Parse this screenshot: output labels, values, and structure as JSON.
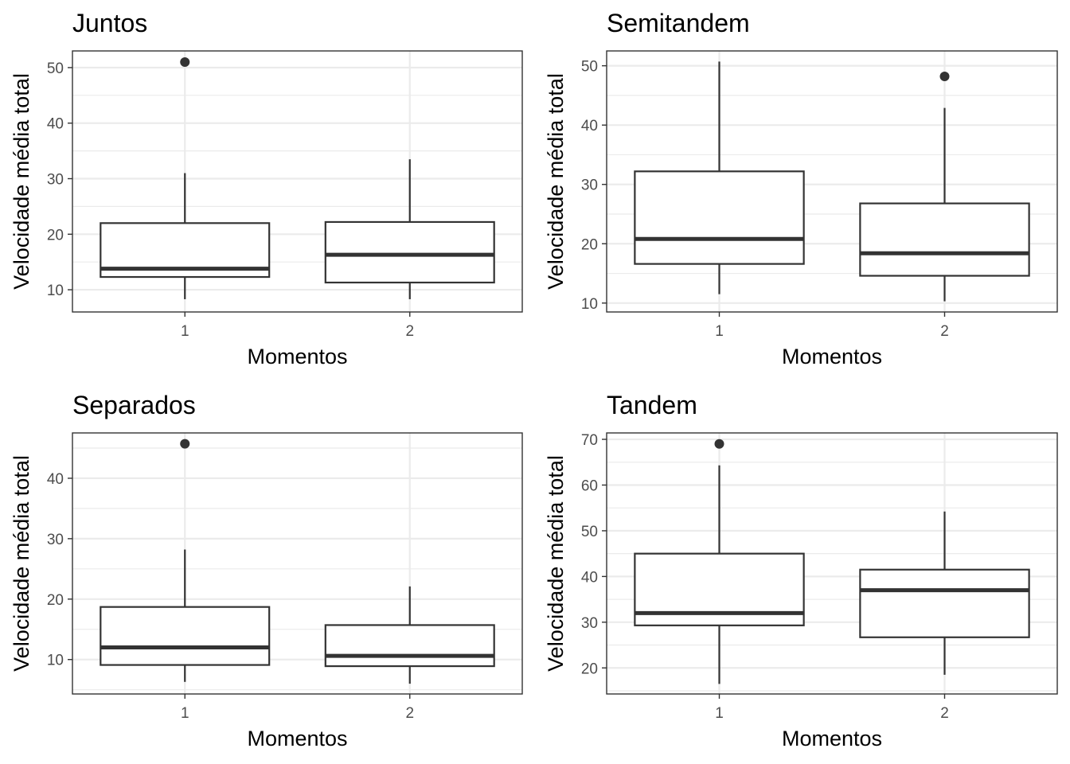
{
  "chart_data": [
    {
      "type": "boxplot",
      "title": "Juntos",
      "xlabel": "Momentos",
      "ylabel": "Velocidade média total",
      "categories": [
        "1",
        "2"
      ],
      "ylim": [
        6,
        53
      ],
      "yticks": [
        10,
        20,
        30,
        40,
        50
      ],
      "grid": true,
      "boxes": [
        {
          "category": "1",
          "whisker_low": 8.3,
          "q1": 12.3,
          "median": 13.8,
          "q3": 22.0,
          "whisker_high": 31.0,
          "outliers": [
            51.0
          ]
        },
        {
          "category": "2",
          "whisker_low": 8.3,
          "q1": 11.3,
          "median": 16.3,
          "q3": 22.2,
          "whisker_high": 33.5,
          "outliers": []
        }
      ]
    },
    {
      "type": "boxplot",
      "title": "Semitandem",
      "xlabel": "Momentos",
      "ylabel": "Velocidade média total",
      "categories": [
        "1",
        "2"
      ],
      "ylim": [
        8.5,
        52.5
      ],
      "yticks": [
        10,
        20,
        30,
        40,
        50
      ],
      "grid": true,
      "boxes": [
        {
          "category": "1",
          "whisker_low": 11.5,
          "q1": 16.6,
          "median": 20.8,
          "q3": 32.2,
          "whisker_high": 50.7,
          "outliers": []
        },
        {
          "category": "2",
          "whisker_low": 10.3,
          "q1": 14.6,
          "median": 18.4,
          "q3": 26.8,
          "whisker_high": 42.9,
          "outliers": [
            48.2
          ]
        }
      ]
    },
    {
      "type": "boxplot",
      "title": "Separados",
      "xlabel": "Momentos",
      "ylabel": "Velocidade média total",
      "categories": [
        "1",
        "2"
      ],
      "ylim": [
        4.3,
        47.5
      ],
      "yticks": [
        10,
        20,
        30,
        40
      ],
      "grid": true,
      "boxes": [
        {
          "category": "1",
          "whisker_low": 6.3,
          "q1": 9.1,
          "median": 12.0,
          "q3": 18.7,
          "whisker_high": 28.2,
          "outliers": [
            45.7
          ]
        },
        {
          "category": "2",
          "whisker_low": 6.0,
          "q1": 8.9,
          "median": 10.6,
          "q3": 15.7,
          "whisker_high": 22.1,
          "outliers": []
        }
      ]
    },
    {
      "type": "boxplot",
      "title": "Tandem",
      "xlabel": "Momentos",
      "ylabel": "Velocidade média total",
      "categories": [
        "1",
        "2"
      ],
      "ylim": [
        14.3,
        71.4
      ],
      "yticks": [
        20,
        30,
        40,
        50,
        60,
        70
      ],
      "grid": true,
      "boxes": [
        {
          "category": "1",
          "whisker_low": 16.5,
          "q1": 29.3,
          "median": 32.0,
          "q3": 45.0,
          "whisker_high": 64.3,
          "outliers": [
            69.0
          ]
        },
        {
          "category": "2",
          "whisker_low": 18.5,
          "q1": 26.7,
          "median": 37.0,
          "q3": 41.5,
          "whisker_high": 54.2,
          "outliers": []
        }
      ]
    }
  ]
}
